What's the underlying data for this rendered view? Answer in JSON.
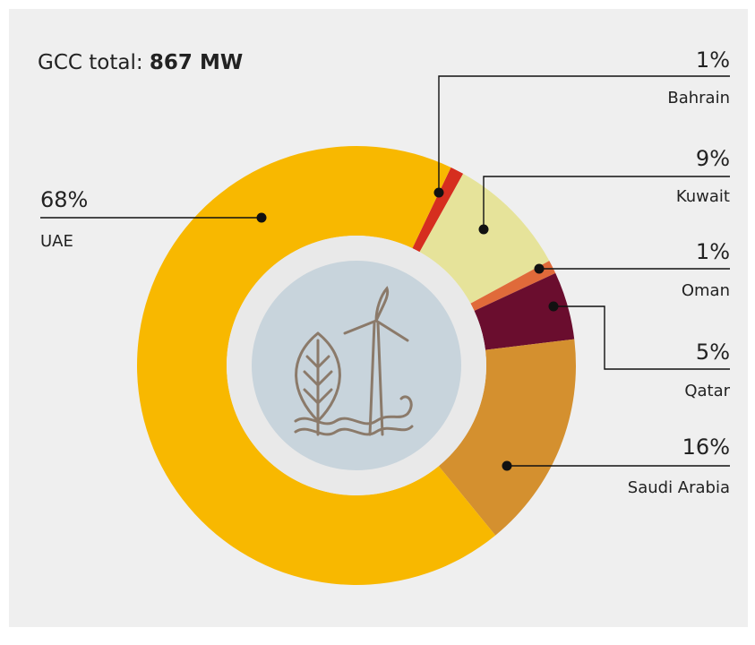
{
  "chart_data": {
    "type": "donut",
    "title": "GCC total:",
    "title_value": "867 MW",
    "categories": [
      "Bahrain",
      "Kuwait",
      "Oman",
      "Qatar",
      "Saudi Arabia",
      "UAE"
    ],
    "values": [
      1,
      9,
      1,
      5,
      16,
      68
    ],
    "value_labels": [
      "1%",
      "9%",
      "1%",
      "5%",
      "16%",
      "68%"
    ],
    "colors": [
      "#d62e1f",
      "#e6e39a",
      "#e06a3a",
      "#6a0d2e",
      "#d4902f",
      "#f8b800"
    ]
  }
}
